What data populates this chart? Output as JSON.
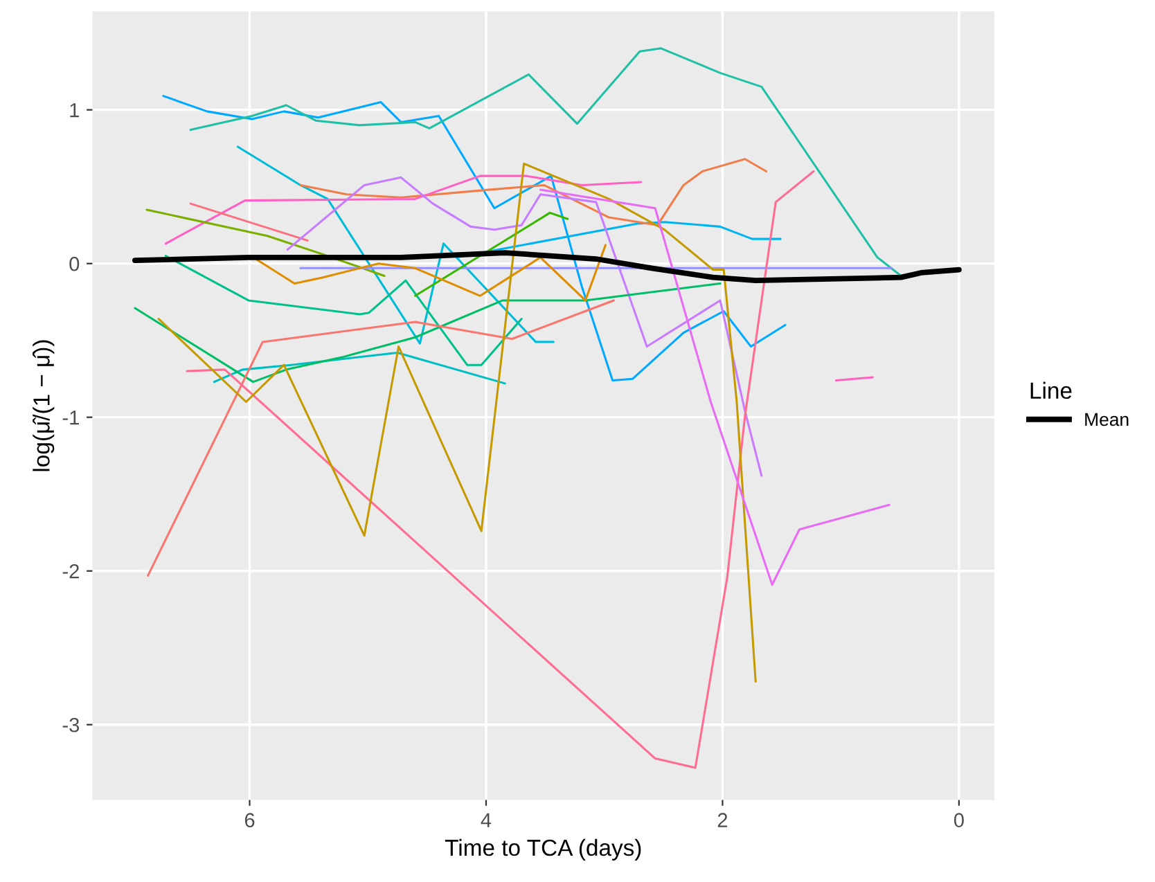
{
  "chart_data": {
    "type": "line",
    "xlabel": "Time to TCA (days)",
    "ylabel": "log(μ̂/(1 − μ̂))",
    "legend_title": "Line",
    "legend": "right",
    "grid": true,
    "line_style": "solid",
    "xlim": [
      7.33,
      -0.3
    ],
    "xticks": [
      6,
      4,
      2,
      0
    ],
    "ylim": [
      -3.49,
      1.64
    ],
    "yticks": [
      -3,
      -2,
      -1,
      0,
      1
    ],
    "series": [
      {
        "color": "#00A9FF",
        "x": [
          6.73,
          6.36,
          5.98,
          5.71,
          5.42,
          4.89,
          4.72,
          4.4,
          3.93,
          3.45,
          3.19,
          2.93,
          2.76,
          2.33,
          1.99,
          1.76,
          1.47
        ],
        "values": [
          1.09,
          0.99,
          0.94,
          0.99,
          0.95,
          1.05,
          0.92,
          0.96,
          0.36,
          0.57,
          -0.15,
          -0.76,
          -0.75,
          -0.45,
          -0.31,
          -0.54,
          -0.4
        ]
      },
      {
        "color": "#1FC0A5",
        "x": [
          6.5,
          5.98,
          5.69,
          5.44,
          5.07,
          4.6,
          4.48,
          3.64,
          3.23,
          2.7,
          2.52,
          2.02,
          1.67,
          0.69,
          0.49
        ],
        "values": [
          0.87,
          0.96,
          1.03,
          0.93,
          0.9,
          0.92,
          0.88,
          1.23,
          0.91,
          1.38,
          1.4,
          1.24,
          1.15,
          0.04,
          -0.08
        ]
      },
      {
        "color": "#00BCD8",
        "x": [
          6.1,
          5.57,
          5.34,
          4.56,
          4.36,
          3.58,
          3.43
        ],
        "values": [
          0.76,
          0.51,
          0.42,
          -0.52,
          0.13,
          -0.51,
          -0.51
        ]
      },
      {
        "color": "#00BFC4",
        "x": [
          6.3,
          6.06,
          5.65,
          4.75,
          3.84
        ],
        "values": [
          -0.77,
          -0.69,
          -0.66,
          -0.58,
          -0.78
        ]
      },
      {
        "color": "#00B4F0",
        "x": [
          4.25,
          2.72,
          2.49,
          2.02,
          1.75,
          1.51
        ],
        "values": [
          0.04,
          0.26,
          0.27,
          0.24,
          0.16,
          0.16
        ]
      },
      {
        "color": "#F07E4A",
        "x": [
          5.57,
          5.18,
          4.72,
          3.98,
          3.51,
          2.96,
          2.55,
          2.33,
          2.17,
          1.81,
          1.63
        ],
        "values": [
          0.51,
          0.45,
          0.43,
          0.48,
          0.51,
          0.3,
          0.25,
          0.51,
          0.6,
          0.68,
          0.6
        ]
      },
      {
        "color": "#FF61C3",
        "x": [
          6.71,
          6.04,
          4.6,
          4.05,
          3.66,
          3.19,
          2.69
        ],
        "values": [
          0.13,
          0.41,
          0.42,
          0.57,
          0.57,
          0.51,
          0.53
        ]
      },
      {
        "color": "#FC717F",
        "x": [
          6.5,
          5.51
        ],
        "values": [
          0.39,
          0.15
        ]
      },
      {
        "color": "#7CAE00",
        "x": [
          6.87,
          5.85,
          5.38,
          4.86
        ],
        "values": [
          0.35,
          0.18,
          0.06,
          -0.08
        ]
      },
      {
        "color": "#C77CFF",
        "x": [
          5.68,
          5.03,
          4.72,
          4.45,
          4.13,
          3.93,
          3.7,
          3.54,
          3.07,
          2.64,
          2.02,
          1.81,
          1.67
        ],
        "values": [
          0.09,
          0.51,
          0.56,
          0.39,
          0.24,
          0.22,
          0.25,
          0.45,
          0.4,
          -0.54,
          -0.24,
          -0.96,
          -1.38
        ]
      },
      {
        "color": "#9590FF",
        "x": [
          5.57,
          0.57
        ],
        "values": [
          -0.03,
          -0.03
        ]
      },
      {
        "color": "#00BE67",
        "x": [
          6.97,
          5.97,
          5.69,
          5.22,
          4.6,
          3.86,
          3.16,
          2.02
        ],
        "values": [
          -0.29,
          -0.77,
          -0.69,
          -0.61,
          -0.48,
          -0.24,
          -0.24,
          -0.13
        ]
      },
      {
        "color": "#00C08B",
        "x": [
          6.71,
          6.01,
          5.07,
          4.99,
          4.68,
          4.16,
          4.04,
          3.7
        ],
        "values": [
          0.05,
          -0.24,
          -0.33,
          -0.32,
          -0.11,
          -0.66,
          -0.66,
          -0.36
        ]
      },
      {
        "color": "#39B600",
        "x": [
          4.6,
          3.46,
          3.31
        ],
        "values": [
          -0.21,
          0.33,
          0.29
        ]
      },
      {
        "color": "#DE8C00",
        "x": [
          5.97,
          5.62,
          5.38,
          4.91,
          4.6,
          4.05,
          3.54,
          3.16,
          2.99
        ],
        "values": [
          0.04,
          -0.13,
          -0.09,
          0,
          -0.03,
          -0.21,
          0.04,
          -0.24,
          0.12
        ]
      },
      {
        "color": "#F8766D",
        "x": [
          6.86,
          5.89,
          4.6,
          3.78,
          2.92
        ],
        "values": [
          -2.03,
          -0.51,
          -0.38,
          -0.49,
          -0.24
        ]
      },
      {
        "color": "#FF6C91",
        "x": [
          6.53,
          6.21,
          2.57,
          2.23,
          1.96,
          1.81,
          1.55,
          1.23
        ],
        "values": [
          -0.7,
          -0.69,
          -3.22,
          -3.28,
          -2.04,
          -0.99,
          0.4,
          0.6
        ]
      },
      {
        "color": "#C49A00",
        "x": [
          6.77,
          6.03,
          5.71,
          5.03,
          4.74,
          4.04,
          3.68,
          2.96,
          2.49,
          2.08,
          1.99,
          1.88,
          1.72
        ],
        "values": [
          -0.36,
          -0.9,
          -0.66,
          -1.77,
          -0.54,
          -1.74,
          0.65,
          0.42,
          0.22,
          -0.04,
          -0.04,
          -0.9,
          -2.72
        ]
      },
      {
        "color": "#E76BF3",
        "x": [
          3.54,
          2.57,
          2.1,
          1.58,
          1.35,
          0.59
        ],
        "values": [
          0.48,
          0.36,
          -0.9,
          -2.09,
          -1.73,
          -1.57
        ]
      },
      {
        "color": "#FF62BC",
        "x": [
          1.04,
          0.73
        ],
        "values": [
          -0.76,
          -0.74
        ]
      },
      {
        "name": "Mean",
        "color": "#000000",
        "x": [
          6.97,
          6.01,
          4.72,
          3.84,
          3.07,
          2.6,
          2.08,
          1.72,
          0.49,
          0.32,
          0
        ],
        "values": [
          0.02,
          0.04,
          0.04,
          0.07,
          0.03,
          -0.03,
          -0.09,
          -0.11,
          -0.09,
          -0.06,
          -0.04
        ]
      }
    ]
  }
}
